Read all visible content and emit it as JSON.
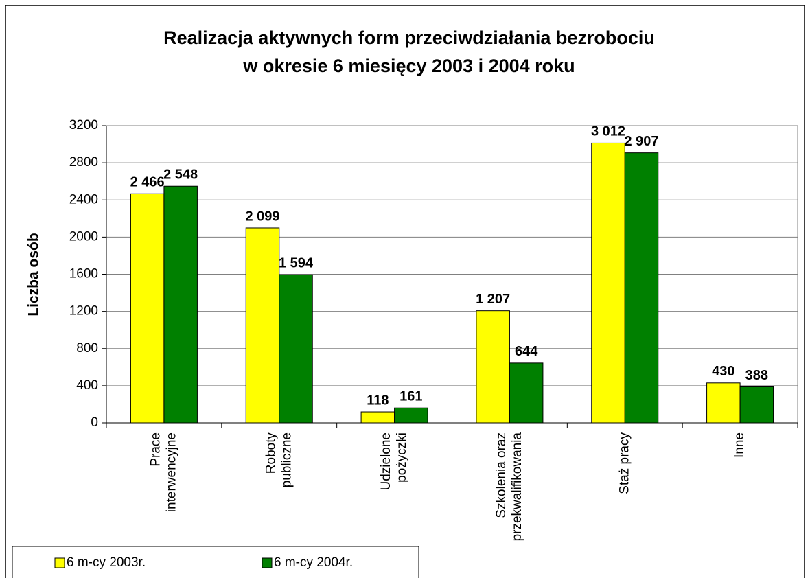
{
  "chart_data": {
    "type": "bar",
    "title": [
      "Realizacja aktywnych form przeciwdziałania bezrobociu",
      "w okresie 6 miesięcy 2003 i 2004 roku"
    ],
    "y_label": "Liczba osób",
    "categories": [
      [
        "Prace",
        "interwencyjne"
      ],
      [
        "Roboty",
        "publiczne"
      ],
      [
        "Udzielone",
        "pożyczki"
      ],
      [
        "Szkolenia oraz",
        "przekwalifikowania"
      ],
      [
        "Staż pracy"
      ],
      [
        "Inne"
      ]
    ],
    "series": [
      {
        "name": "6 m-cy 2003r.",
        "color": "#ffff00",
        "values": [
          2466,
          2099,
          118,
          1207,
          3012,
          430
        ],
        "value_labels": [
          "2 466",
          "2 099",
          "118",
          "1 207",
          "3 012",
          "430"
        ]
      },
      {
        "name": "6 m-cy 2004r.",
        "color": "#008000",
        "values": [
          2548,
          1594,
          161,
          644,
          2907,
          388
        ],
        "value_labels": [
          "2 548",
          "1 594",
          "161",
          "644",
          "2 907",
          "388"
        ]
      }
    ],
    "ylim": [
      0,
      3200
    ],
    "yticks": [
      0,
      400,
      800,
      1200,
      1600,
      2000,
      2400,
      2800,
      3200
    ],
    "grid": true,
    "legend": "bottom-left"
  }
}
